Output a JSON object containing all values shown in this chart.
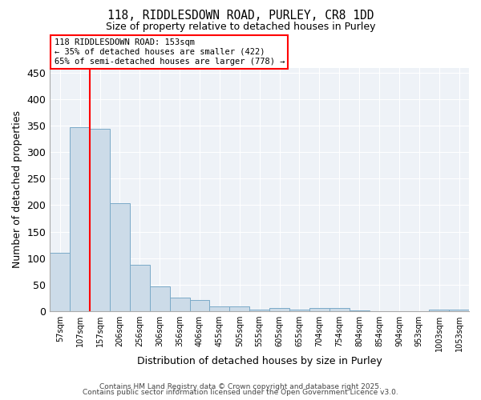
{
  "title_line1": "118, RIDDLESDOWN ROAD, PURLEY, CR8 1DD",
  "title_line2": "Size of property relative to detached houses in Purley",
  "xlabel": "Distribution of detached houses by size in Purley",
  "ylabel": "Number of detached properties",
  "categories": [
    "57sqm",
    "107sqm",
    "157sqm",
    "206sqm",
    "256sqm",
    "306sqm",
    "356sqm",
    "406sqm",
    "455sqm",
    "505sqm",
    "555sqm",
    "605sqm",
    "655sqm",
    "704sqm",
    "754sqm",
    "804sqm",
    "854sqm",
    "904sqm",
    "953sqm",
    "1003sqm",
    "1053sqm"
  ],
  "values": [
    110,
    347,
    345,
    204,
    87,
    47,
    25,
    20,
    9,
    8,
    3,
    5,
    2,
    6,
    6,
    1,
    0,
    0,
    0,
    2,
    2
  ],
  "bar_color": "#ccdbe8",
  "bar_edge_color": "#7aaac8",
  "red_line_x": 1.5,
  "annotation_text": "118 RIDDLESDOWN ROAD: 153sqm\n← 35% of detached houses are smaller (422)\n65% of semi-detached houses are larger (778) →",
  "ylim": [
    0,
    460
  ],
  "yticks": [
    0,
    50,
    100,
    150,
    200,
    250,
    300,
    350,
    400,
    450
  ],
  "footer_line1": "Contains HM Land Registry data © Crown copyright and database right 2025.",
  "footer_line2": "Contains public sector information licensed under the Open Government Licence v3.0.",
  "bg_color": "#eef2f7",
  "grid_color": "#ffffff",
  "fig_bg_color": "#ffffff"
}
